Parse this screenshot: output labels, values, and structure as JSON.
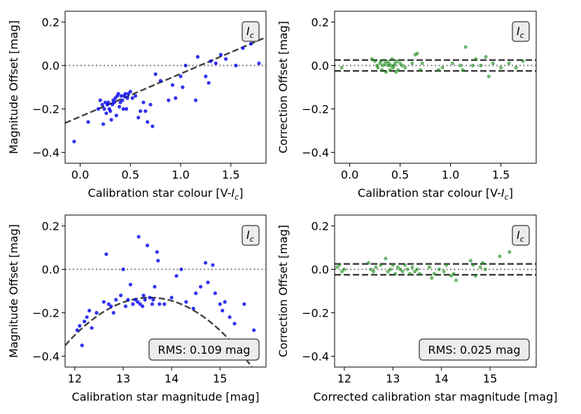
{
  "figure": {
    "background": "#ffffff"
  },
  "chart_data": [
    {
      "id": "p1",
      "type": "scatter",
      "xlabel_prefix": "Calibration star colour [V-",
      "xlabel_var": "I",
      "xlabel_sub": "c",
      "xlabel_suffix": "]",
      "ylabel": "Magnitude Offset [mag]",
      "xlim": [
        -0.15,
        1.85
      ],
      "ylim": [
        -0.45,
        0.25
      ],
      "xticks": [
        0.0,
        0.5,
        1.0,
        1.5
      ],
      "xtick_labels": [
        "0.0",
        "0.5",
        "1.0",
        "1.5"
      ],
      "yticks": [
        -0.4,
        -0.2,
        0.0,
        0.2
      ],
      "ytick_labels": [
        "−0.4",
        "−0.2",
        "0.0",
        "0.2"
      ],
      "badge_var": "I",
      "badge_sub": "c",
      "zero_line": {
        "value": 0.0,
        "color": "#808080",
        "style": "dotted"
      },
      "fit": {
        "type": "linear",
        "x": [
          -0.15,
          1.85
        ],
        "y": [
          -0.265,
          0.13
        ],
        "color": "#404040",
        "style": "dashed"
      },
      "marker_color": "#0000ee",
      "marker_opacity": 0.8,
      "points": {
        "x": [
          -0.06,
          0.08,
          0.18,
          0.2,
          0.22,
          0.23,
          0.24,
          0.25,
          0.26,
          0.27,
          0.28,
          0.29,
          0.3,
          0.31,
          0.32,
          0.33,
          0.34,
          0.35,
          0.36,
          0.37,
          0.38,
          0.39,
          0.4,
          0.41,
          0.42,
          0.43,
          0.44,
          0.45,
          0.46,
          0.47,
          0.48,
          0.5,
          0.52,
          0.55,
          0.58,
          0.6,
          0.63,
          0.65,
          0.67,
          0.7,
          0.72,
          0.75,
          0.8,
          0.88,
          0.92,
          0.95,
          1.0,
          1.02,
          1.05,
          1.15,
          1.17,
          1.25,
          1.28,
          1.3,
          1.35,
          1.4,
          1.45,
          1.55,
          1.62,
          1.7,
          1.78
        ],
        "y": [
          -0.35,
          -0.26,
          -0.2,
          -0.16,
          -0.18,
          -0.27,
          -0.2,
          -0.17,
          -0.22,
          -0.18,
          -0.17,
          -0.2,
          -0.21,
          -0.25,
          -0.18,
          -0.16,
          -0.17,
          -0.15,
          -0.23,
          -0.14,
          -0.13,
          -0.19,
          -0.17,
          -0.14,
          -0.16,
          -0.2,
          -0.14,
          -0.13,
          -0.2,
          -0.15,
          -0.13,
          -0.12,
          -0.15,
          -0.14,
          -0.24,
          -0.21,
          -0.17,
          -0.21,
          -0.26,
          -0.18,
          -0.28,
          -0.04,
          -0.07,
          -0.16,
          -0.09,
          -0.15,
          -0.05,
          -0.1,
          0.0,
          -0.16,
          0.04,
          -0.05,
          -0.08,
          0.02,
          0.01,
          0.05,
          0.03,
          0.0,
          0.08,
          0.1,
          0.01
        ]
      }
    },
    {
      "id": "p2",
      "type": "scatter",
      "xlabel_prefix": "Calibration star colour [V-",
      "xlabel_var": "I",
      "xlabel_sub": "c",
      "xlabel_suffix": "]",
      "ylabel": "Correction Offset [mag]",
      "xlim": [
        -0.15,
        1.85
      ],
      "ylim": [
        -0.45,
        0.25
      ],
      "xticks": [
        0.0,
        0.5,
        1.0,
        1.5
      ],
      "xtick_labels": [
        "0.0",
        "0.5",
        "1.0",
        "1.5"
      ],
      "yticks": [
        -0.4,
        -0.2,
        0.0,
        0.2
      ],
      "ytick_labels": [
        "−0.4",
        "−0.2",
        "0.0",
        "0.2"
      ],
      "badge_var": "I",
      "badge_sub": "c",
      "zero_line": {
        "value": 0.0,
        "color": "#808080",
        "style": "dotted"
      },
      "bands": [
        0.025,
        -0.025
      ],
      "band_color": "#404040",
      "marker_color": "#118811",
      "marker_opacity": 0.6,
      "points": {
        "x": [
          -0.08,
          0.22,
          0.25,
          0.27,
          0.28,
          0.3,
          0.31,
          0.32,
          0.33,
          0.35,
          0.36,
          0.37,
          0.38,
          0.39,
          0.4,
          0.41,
          0.42,
          0.43,
          0.44,
          0.45,
          0.46,
          0.47,
          0.48,
          0.5,
          0.52,
          0.55,
          0.62,
          0.65,
          0.67,
          0.7,
          0.72,
          0.88,
          0.92,
          1.02,
          1.1,
          1.12,
          1.15,
          1.22,
          1.25,
          1.3,
          1.35,
          1.38,
          1.42,
          1.5,
          1.58,
          1.65,
          1.72
        ],
        "y": [
          -0.01,
          0.03,
          0.02,
          0.0,
          -0.01,
          0.01,
          0.02,
          -0.02,
          0.0,
          0.01,
          -0.03,
          0.02,
          0.0,
          0.01,
          -0.02,
          0.0,
          0.03,
          -0.01,
          0.0,
          0.01,
          -0.03,
          0.02,
          -0.02,
          0.01,
          0.0,
          -0.01,
          0.01,
          0.05,
          0.055,
          -0.02,
          0.01,
          -0.02,
          -0.01,
          0.01,
          0.0,
          -0.02,
          0.085,
          0.0,
          0.03,
          0.0,
          0.04,
          -0.05,
          0.01,
          -0.01,
          0.01,
          -0.01,
          0.02
        ]
      }
    },
    {
      "id": "p3",
      "type": "scatter",
      "xlabel_prefix": "Calibration star magnitude [mag]",
      "ylabel": "Magnitude Offset [mag]",
      "xlim": [
        11.8,
        15.95
      ],
      "ylim": [
        -0.45,
        0.25
      ],
      "xticks": [
        12,
        13,
        14,
        15
      ],
      "xtick_labels": [
        "12",
        "13",
        "14",
        "15"
      ],
      "yticks": [
        -0.4,
        -0.2,
        0.0,
        0.2
      ],
      "ytick_labels": [
        "−0.4",
        "−0.2",
        "0.0",
        "0.2"
      ],
      "badge_var": "I",
      "badge_sub": "c",
      "rms_label": "RMS: 0.109 mag",
      "zero_line": {
        "value": 0.0,
        "color": "#808080",
        "style": "dotted"
      },
      "fit": {
        "type": "quadratic",
        "vertex_x": 13.55,
        "vertex_y": -0.13,
        "a": -0.072,
        "color": "#404040",
        "style": "dashed"
      },
      "marker_color": "#0000ee",
      "marker_opacity": 0.8,
      "points": {
        "x": [
          12.05,
          12.1,
          12.15,
          12.2,
          12.25,
          12.3,
          12.35,
          12.45,
          12.6,
          12.65,
          12.7,
          12.75,
          12.8,
          12.85,
          12.95,
          13.0,
          13.05,
          13.1,
          13.15,
          13.2,
          13.25,
          13.3,
          13.32,
          13.35,
          13.4,
          13.42,
          13.45,
          13.5,
          13.55,
          13.6,
          13.62,
          13.65,
          13.7,
          13.72,
          13.75,
          13.85,
          14.0,
          14.1,
          14.2,
          14.3,
          14.45,
          14.5,
          14.6,
          14.7,
          14.75,
          14.85,
          14.9,
          15.0,
          15.05,
          15.1,
          15.2,
          15.3,
          15.5,
          15.7
        ],
        "y": [
          -0.28,
          -0.26,
          -0.35,
          -0.24,
          -0.22,
          -0.19,
          -0.27,
          -0.2,
          -0.15,
          0.07,
          -0.16,
          -0.17,
          -0.2,
          -0.14,
          -0.12,
          0.0,
          -0.17,
          -0.14,
          -0.07,
          -0.16,
          -0.14,
          -0.15,
          0.15,
          -0.16,
          -0.17,
          -0.12,
          -0.14,
          0.11,
          -0.13,
          -0.16,
          -0.14,
          -0.08,
          0.08,
          0.04,
          -0.16,
          -0.16,
          -0.13,
          -0.03,
          0.0,
          -0.15,
          -0.18,
          -0.11,
          -0.08,
          0.03,
          -0.06,
          0.02,
          -0.11,
          -0.16,
          -0.19,
          -0.15,
          -0.22,
          -0.25,
          -0.16,
          -0.28
        ]
      }
    },
    {
      "id": "p4",
      "type": "scatter",
      "xlabel_prefix": "Corrected calibration star magnitude [mag]",
      "ylabel": "Correction Offset [mag]",
      "xlim": [
        11.8,
        15.95
      ],
      "ylim": [
        -0.45,
        0.25
      ],
      "xticks": [
        12,
        13,
        14,
        15
      ],
      "xtick_labels": [
        "12",
        "13",
        "14",
        "15"
      ],
      "yticks": [
        -0.4,
        -0.2,
        0.0,
        0.2
      ],
      "ytick_labels": [
        "−0.4",
        "−0.2",
        "0.0",
        "0.2"
      ],
      "badge_var": "I",
      "badge_sub": "c",
      "rms_label": "RMS: 0.025 mag",
      "zero_line": {
        "value": 0.0,
        "color": "#808080",
        "style": "dotted"
      },
      "bands": [
        0.025,
        -0.025
      ],
      "band_color": "#404040",
      "marker_color": "#118811",
      "marker_opacity": 0.6,
      "points": {
        "x": [
          11.85,
          11.9,
          11.95,
          12.0,
          12.5,
          12.55,
          12.6,
          12.65,
          12.75,
          12.85,
          12.9,
          12.95,
          13.0,
          13.05,
          13.1,
          13.15,
          13.2,
          13.25,
          13.3,
          13.35,
          13.4,
          13.45,
          13.5,
          13.55,
          13.75,
          13.8,
          13.85,
          13.95,
          14.05,
          14.1,
          14.2,
          14.25,
          14.3,
          14.6,
          14.65,
          14.7,
          14.8,
          14.85,
          14.9,
          15.2,
          15.4
        ],
        "y": [
          0.01,
          0.02,
          -0.01,
          0.0,
          0.03,
          0.0,
          -0.01,
          0.01,
          0.02,
          0.05,
          -0.01,
          0.0,
          0.02,
          -0.02,
          0.01,
          0.0,
          -0.01,
          0.02,
          0.0,
          -0.02,
          0.01,
          -0.01,
          0.0,
          -0.02,
          0.01,
          -0.04,
          -0.02,
          0.0,
          -0.01,
          0.02,
          -0.03,
          -0.02,
          -0.05,
          0.04,
          0.02,
          -0.03,
          0.01,
          0.03,
          0.0,
          0.06,
          0.08
        ]
      }
    }
  ]
}
